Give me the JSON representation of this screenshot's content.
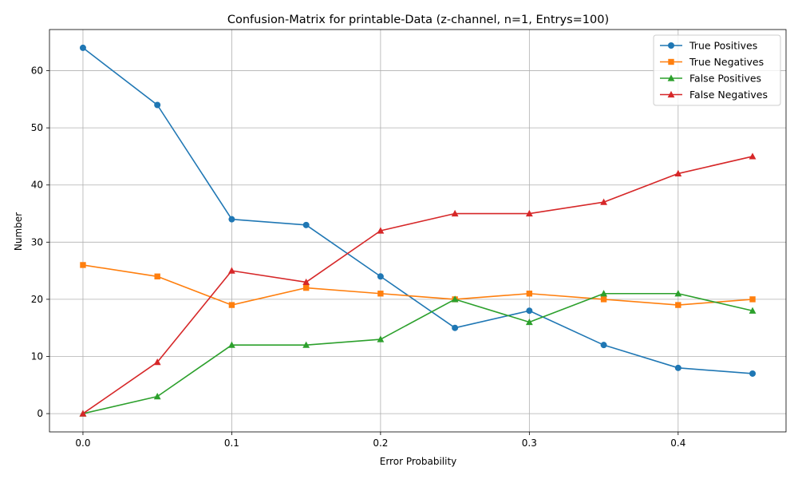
{
  "chart_data": {
    "type": "line",
    "title": "Confusion-Matrix for printable-Data (z-channel, n=1, Entrys=100)",
    "xlabel": "Error Probability",
    "ylabel": "Number",
    "x": [
      0.0,
      0.05,
      0.1,
      0.15,
      0.2,
      0.25,
      0.3,
      0.35,
      0.4,
      0.45
    ],
    "xlim": [
      -0.0225,
      0.4725
    ],
    "ylim": [
      -3.2,
      67.2
    ],
    "xticks": [
      0.0,
      0.1,
      0.2,
      0.3,
      0.4
    ],
    "xtick_labels": [
      "0.0",
      "0.1",
      "0.2",
      "0.3",
      "0.4"
    ],
    "yticks": [
      0,
      10,
      20,
      30,
      40,
      50,
      60
    ],
    "ytick_labels": [
      "0",
      "10",
      "20",
      "30",
      "40",
      "50",
      "60"
    ],
    "grid": true,
    "legend_position": "top-right",
    "series": [
      {
        "name": "True Positives",
        "color": "#1f77b4",
        "marker": "circle",
        "values": [
          64,
          54,
          34,
          33,
          24,
          15,
          18,
          12,
          8,
          7
        ]
      },
      {
        "name": "True Negatives",
        "color": "#ff7f0e",
        "marker": "square",
        "values": [
          26,
          24,
          19,
          22,
          21,
          20,
          21,
          20,
          19,
          20
        ]
      },
      {
        "name": "False Positives",
        "color": "#2ca02c",
        "marker": "triangle",
        "values": [
          0,
          3,
          12,
          12,
          13,
          20,
          16,
          21,
          21,
          18
        ]
      },
      {
        "name": "False Negatives",
        "color": "#d62728",
        "marker": "triangle",
        "values": [
          0,
          9,
          25,
          23,
          32,
          35,
          35,
          37,
          42,
          45
        ]
      }
    ]
  }
}
